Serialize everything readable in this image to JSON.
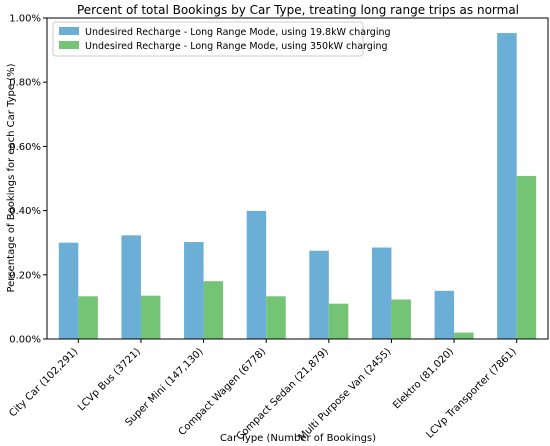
{
  "chart_data": {
    "type": "bar",
    "title": "Percent of total Bookings by Car Type, treating long range trips as normal",
    "xlabel": "Car Type (Number of Bookings)",
    "ylabel": "Percentage of Bookings for each Car Type (%)",
    "ylim": [
      0,
      1.0
    ],
    "yticks": [
      "0.00%",
      "0.20%",
      "0.40%",
      "0.60%",
      "0.80%",
      "1.00%"
    ],
    "yticks_values": [
      0,
      0.2,
      0.4,
      0.6,
      0.8,
      1.0
    ],
    "categories": [
      "City Car (102,291)",
      "LCVp Bus (3721)",
      "Super Mini (147,130)",
      "Compact Wagen (6778)",
      "Compact Sedan (21,879)",
      "Multi Purpose Van (2455)",
      "Elektro (81,020)",
      "LCVp Transporter (7861)"
    ],
    "series": [
      {
        "name": "Undesired Recharge - Long Range Mode, using 19.8kW charging",
        "color": "#6baed6",
        "values": [
          0.3,
          0.323,
          0.302,
          0.399,
          0.275,
          0.285,
          0.15,
          0.953
        ]
      },
      {
        "name": "Undesired Recharge - Long Range Mode, using 350kW charging",
        "color": "#74c476",
        "values": [
          0.133,
          0.135,
          0.18,
          0.133,
          0.11,
          0.123,
          0.02,
          0.508
        ]
      }
    ],
    "legend_position": "top-left",
    "grid": false
  }
}
